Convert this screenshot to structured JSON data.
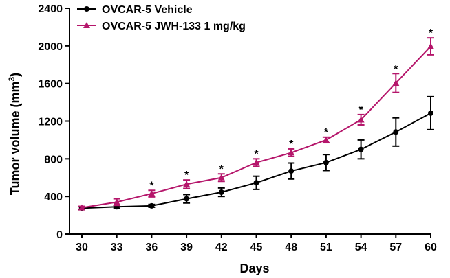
{
  "chart_data": {
    "type": "line",
    "title": "",
    "xlabel": "Days",
    "ylabel": "Tumor volume (mm³)",
    "ylabel_parts": {
      "main": "Tumor volume (mm",
      "sup": "3",
      "close": ")"
    },
    "xlim": [
      30,
      60
    ],
    "ylim": [
      0,
      2400
    ],
    "x_ticks": [
      30,
      33,
      36,
      39,
      42,
      45,
      48,
      51,
      54,
      57,
      60
    ],
    "y_ticks": [
      0,
      400,
      800,
      1200,
      1600,
      2000,
      2400
    ],
    "legend_position": "top-left",
    "significance_marker": "*",
    "series": [
      {
        "name": "OVCAR-5 Vehicle",
        "color": "#000000",
        "marker": "circle",
        "x": [
          30,
          33,
          36,
          39,
          42,
          45,
          48,
          51,
          54,
          57,
          60
        ],
        "values": [
          275,
          290,
          300,
          375,
          445,
          545,
          670,
          760,
          900,
          1085,
          1285
        ],
        "errors": [
          15,
          15,
          15,
          45,
          45,
          70,
          85,
          85,
          100,
          150,
          175
        ]
      },
      {
        "name": "OVCAR-5 JWH-133 1 mg/kg",
        "color": "#b5166b",
        "marker": "triangle",
        "x": [
          30,
          33,
          36,
          39,
          42,
          45,
          48,
          51,
          54,
          57,
          60
        ],
        "values": [
          280,
          340,
          430,
          530,
          600,
          760,
          865,
          1000,
          1215,
          1605,
          1995
        ],
        "errors": [
          15,
          35,
          35,
          45,
          40,
          40,
          40,
          30,
          55,
          100,
          90
        ],
        "significant": [
          false,
          false,
          true,
          true,
          true,
          true,
          true,
          true,
          true,
          true,
          true
        ]
      }
    ]
  }
}
